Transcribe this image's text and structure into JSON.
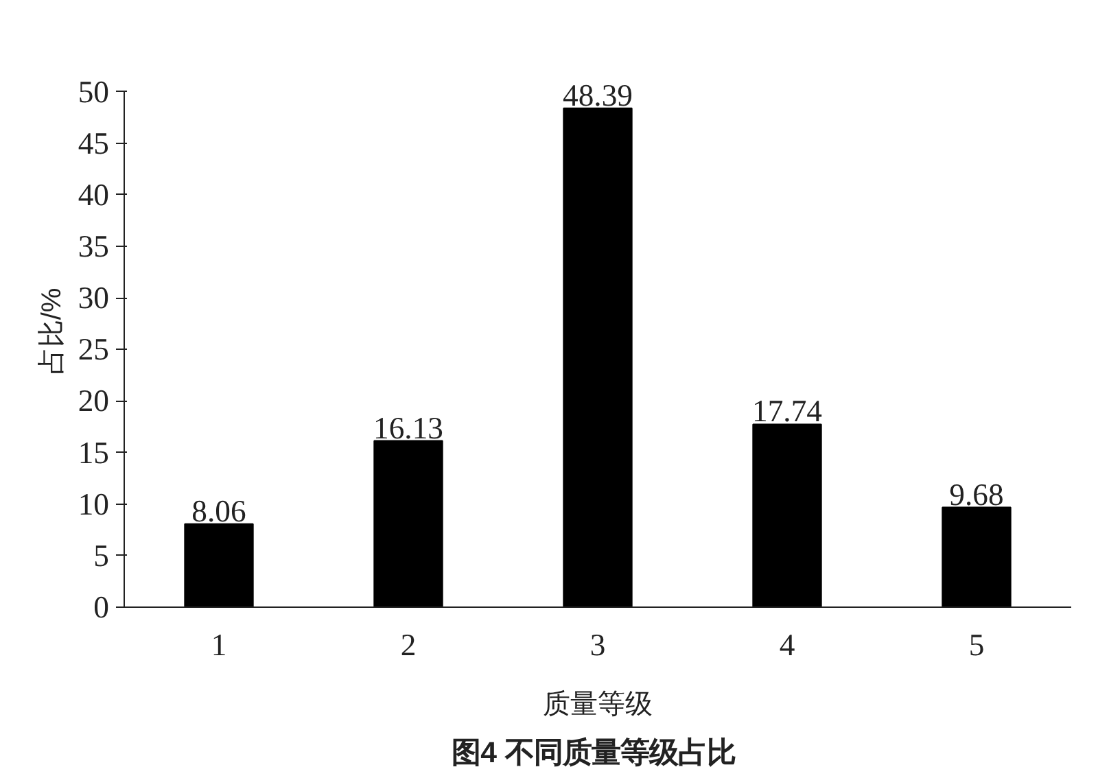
{
  "chart_data": {
    "type": "bar",
    "title": "图4  不同质量等级占比",
    "xlabel": "质量等级",
    "ylabel": "占比/%",
    "categories": [
      "1",
      "2",
      "3",
      "4",
      "5"
    ],
    "values": [
      8.06,
      16.13,
      48.39,
      17.74,
      9.68
    ],
    "color": "#000000",
    "ylim": [
      0,
      50
    ],
    "yticks": [
      0,
      5,
      10,
      15,
      20,
      25,
      30,
      35,
      40,
      45,
      50
    ],
    "data_labels": true,
    "grid": false
  }
}
